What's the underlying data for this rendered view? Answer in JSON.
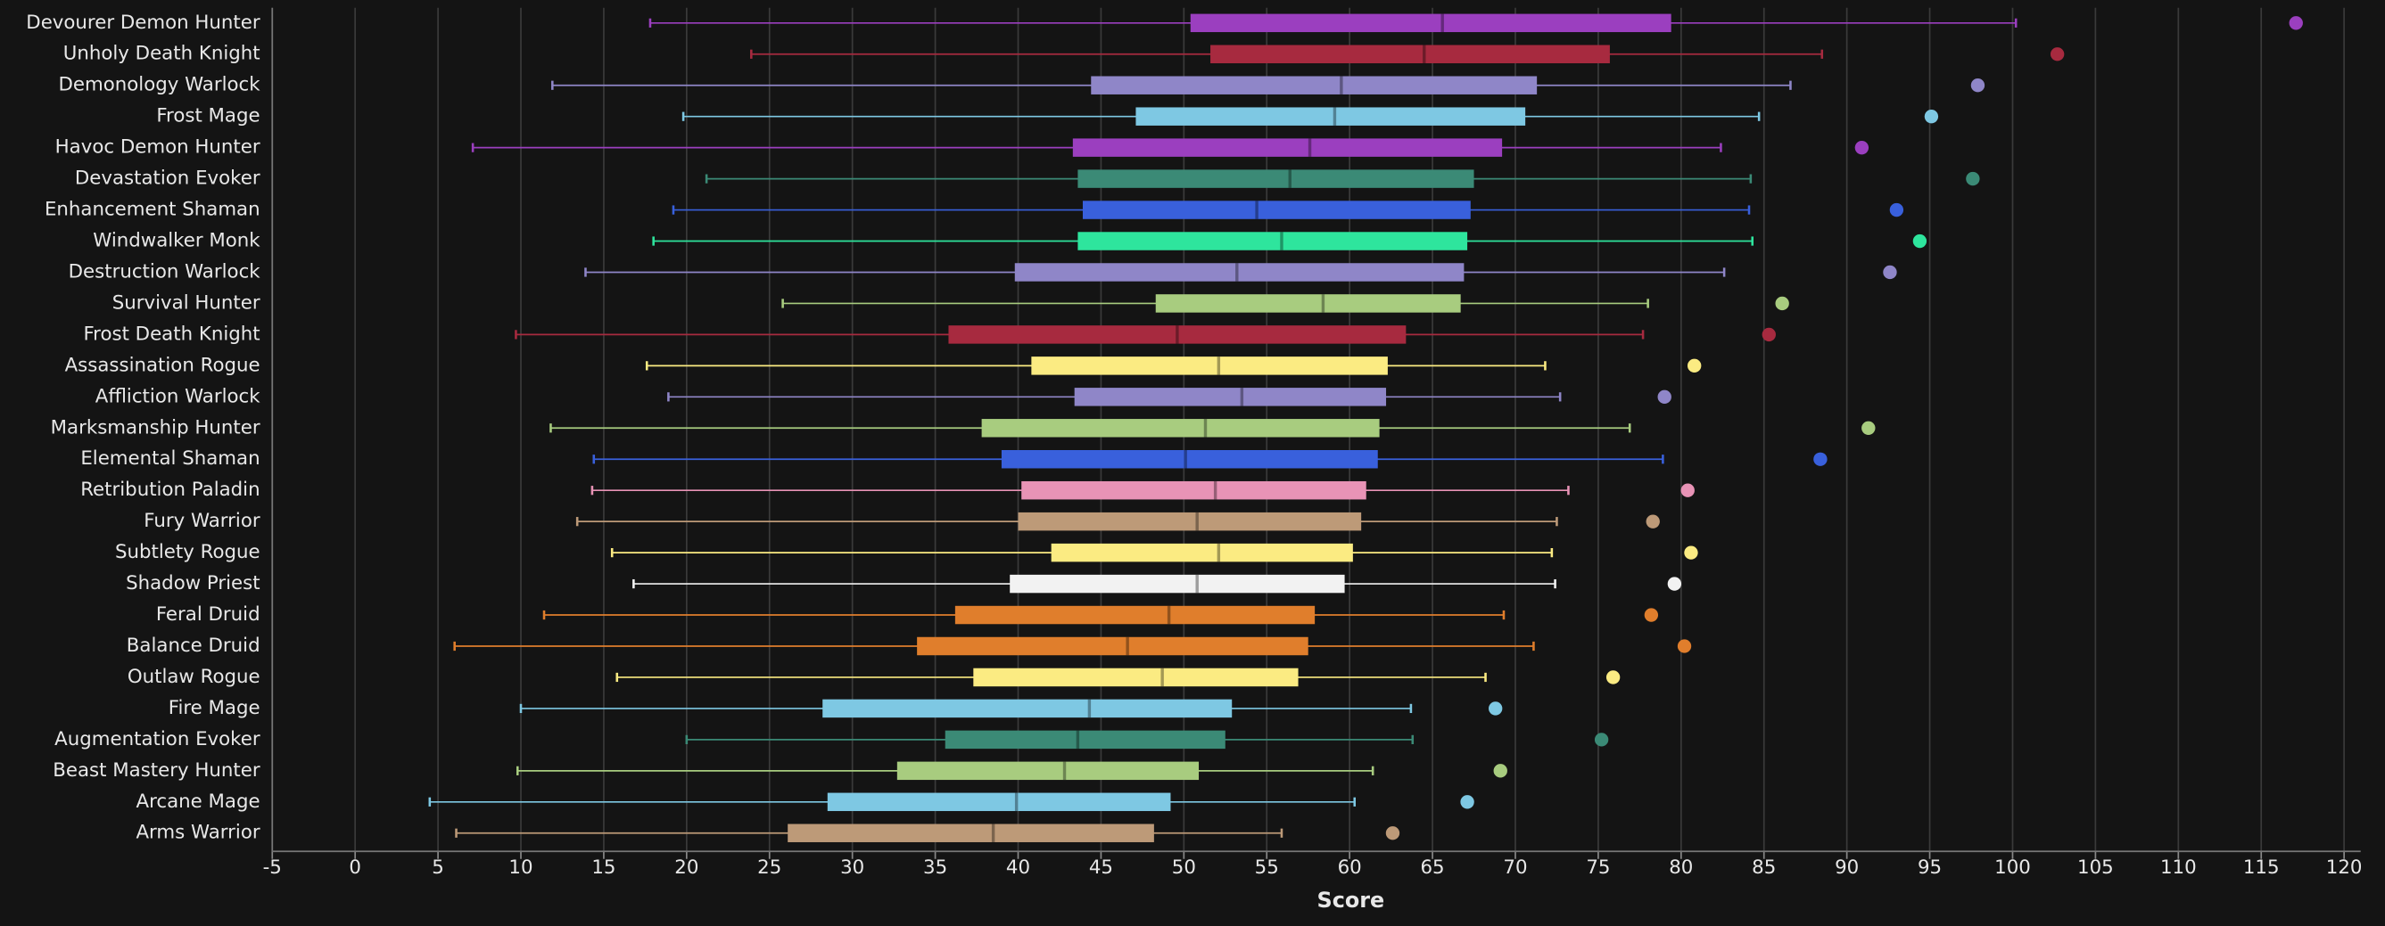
{
  "chart_data": {
    "type": "box",
    "x_label": "Score",
    "categories": [
      "Devourer Demon Hunter",
      "Unholy Death Knight",
      "Demonology Warlock",
      "Frost Mage",
      "Havoc Demon Hunter",
      "Devastation Evoker",
      "Enhancement Shaman",
      "Windwalker Monk",
      "Destruction Warlock",
      "Survival Hunter",
      "Frost Death Knight",
      "Assassination Rogue",
      "Affliction Warlock",
      "Marksmanship Hunter",
      "Elemental Shaman",
      "Retribution Paladin",
      "Fury Warrior",
      "Subtlety Rogue",
      "Shadow Priest",
      "Feral Druid",
      "Balance Druid",
      "Outlaw Rogue",
      "Fire Mage",
      "Augmentation Evoker",
      "Beast Mastery Hunter",
      "Arcane Mage",
      "Arms Warrior"
    ],
    "colors": [
      "#9b3fbf",
      "#a72a3f",
      "#8f86c8",
      "#7ec8e3",
      "#9b3fbf",
      "#3b8a76",
      "#3960dc",
      "#2ee59d",
      "#8f86c8",
      "#a8cc7f",
      "#a72a3f",
      "#fbeb82",
      "#8f86c8",
      "#a8cc7f",
      "#3960dc",
      "#e893b6",
      "#bd9a78",
      "#fbeb82",
      "#f2f2f2",
      "#e07e2c",
      "#e07e2c",
      "#fbeb82",
      "#7ec8e3",
      "#3b8a76",
      "#a8cc7f",
      "#7ec8e3",
      "#bd9a78"
    ],
    "min": [
      17.8,
      23.9,
      11.9,
      19.8,
      7.1,
      21.2,
      19.2,
      18.0,
      13.9,
      25.8,
      9.7,
      17.6,
      18.9,
      11.8,
      14.4,
      14.3,
      13.4,
      15.5,
      16.8,
      11.4,
      6.0,
      15.8,
      10.0,
      20.0,
      9.8,
      4.5,
      6.1
    ],
    "q1": [
      50.4,
      51.6,
      44.4,
      47.1,
      43.3,
      43.6,
      43.9,
      43.6,
      39.8,
      48.3,
      35.8,
      40.8,
      43.4,
      37.8,
      39.0,
      40.2,
      40.0,
      42.0,
      39.5,
      36.2,
      33.9,
      37.3,
      28.2,
      35.6,
      32.7,
      28.5,
      26.1
    ],
    "median": [
      65.6,
      64.5,
      59.5,
      59.1,
      57.6,
      56.4,
      54.4,
      55.9,
      53.2,
      58.4,
      49.6,
      52.1,
      53.5,
      51.3,
      50.1,
      51.9,
      50.8,
      52.1,
      50.8,
      49.1,
      46.6,
      48.7,
      44.3,
      43.6,
      42.8,
      39.9,
      38.5
    ],
    "q3": [
      79.4,
      75.7,
      71.3,
      70.6,
      69.2,
      67.5,
      67.3,
      67.1,
      66.9,
      66.7,
      63.4,
      62.3,
      62.2,
      61.8,
      61.7,
      61.0,
      60.7,
      60.2,
      59.7,
      57.9,
      57.5,
      56.9,
      52.9,
      52.5,
      50.9,
      49.2,
      48.2
    ],
    "max": [
      100.2,
      88.5,
      86.6,
      84.7,
      82.4,
      84.2,
      84.1,
      84.3,
      82.6,
      78.0,
      77.7,
      71.8,
      72.7,
      76.9,
      78.9,
      73.2,
      72.5,
      72.2,
      72.4,
      69.3,
      71.1,
      68.2,
      63.7,
      63.8,
      61.4,
      60.3,
      55.9
    ],
    "outliers": [
      117.1,
      102.7,
      97.9,
      95.1,
      90.9,
      97.6,
      93.0,
      94.4,
      92.6,
      86.1,
      85.3,
      80.8,
      79.0,
      91.3,
      88.4,
      80.4,
      78.3,
      80.6,
      79.6,
      78.2,
      80.2,
      75.9,
      68.8,
      75.2,
      69.1,
      67.1,
      62.6
    ],
    "xlim": [
      -5,
      121
    ],
    "xticks": [
      -5,
      0,
      5,
      10,
      15,
      20,
      25,
      30,
      35,
      40,
      45,
      50,
      55,
      60,
      65,
      70,
      75,
      80,
      85,
      90,
      95,
      100,
      105,
      110,
      115,
      120
    ],
    "grid": true
  }
}
